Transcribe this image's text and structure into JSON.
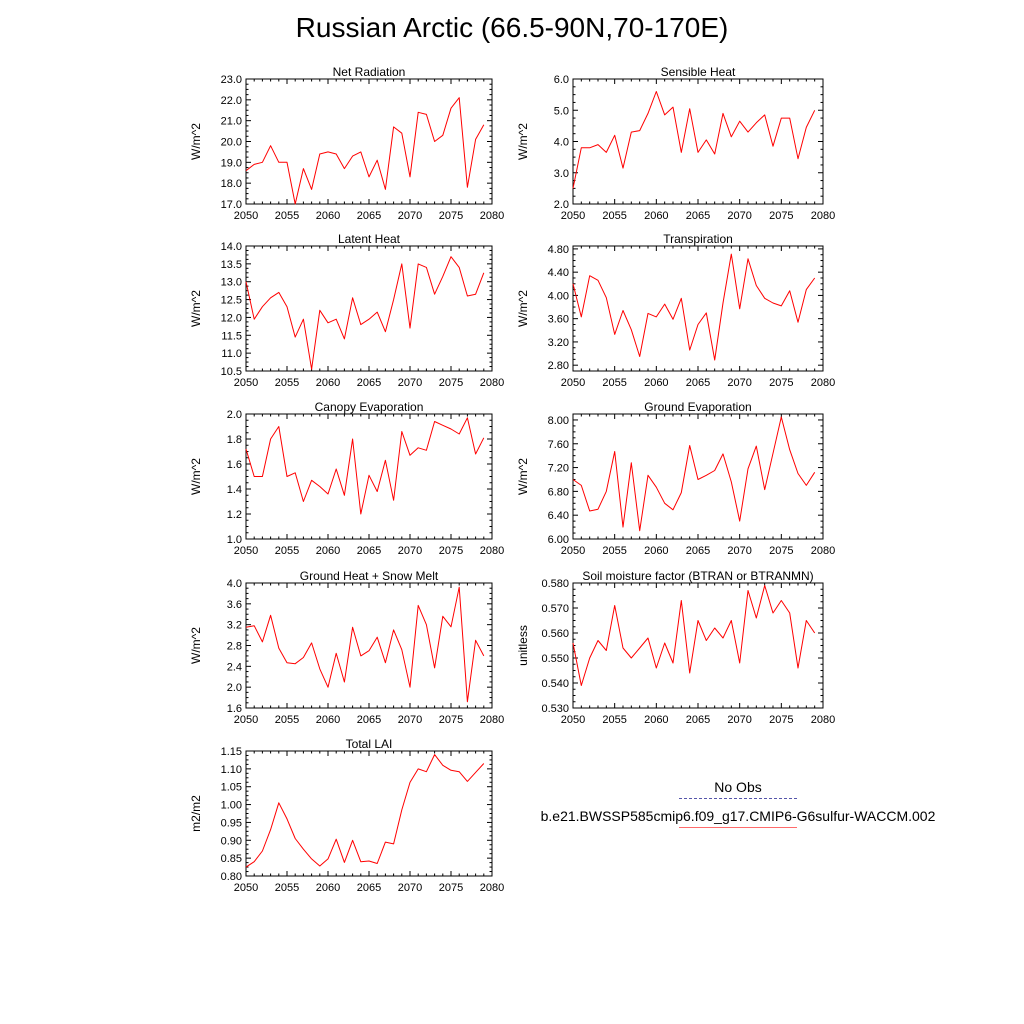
{
  "title": "Russian Arctic (66.5-90N,70-170E)",
  "legend": {
    "obs_label": "No Obs",
    "obs_color": "#4d4d99",
    "model_label": "b.e21.BWSSP585cmip6.f09_g17.CMIP6-G6sulfur-WACCM.002",
    "model_color": "#ff0000"
  },
  "chart_data": [
    {
      "type": "line",
      "title": "Net Radiation",
      "ylabel": "W/m^2",
      "xlim": [
        2050,
        2080
      ],
      "ylim": [
        17.0,
        23.0
      ],
      "xticks": [
        "2050",
        "2055",
        "2060",
        "2065",
        "2070",
        "2075",
        "2080"
      ],
      "yticks": [
        "17.0",
        "18.0",
        "19.0",
        "20.0",
        "21.0",
        "22.0",
        "23.0"
      ],
      "x": [
        2050,
        2051,
        2052,
        2053,
        2054,
        2055,
        2056,
        2057,
        2058,
        2059,
        2060,
        2061,
        2062,
        2063,
        2064,
        2065,
        2066,
        2067,
        2068,
        2069,
        2070,
        2071,
        2072,
        2073,
        2074,
        2075,
        2076,
        2077,
        2078,
        2079
      ],
      "series": [
        {
          "color": "#ff0000",
          "values": [
            18.6,
            18.9,
            19.0,
            19.8,
            19.0,
            19.0,
            17.0,
            18.7,
            17.7,
            19.4,
            19.5,
            19.4,
            18.7,
            19.3,
            19.5,
            18.3,
            19.1,
            17.7,
            20.7,
            20.4,
            18.3,
            21.4,
            21.3,
            20.0,
            20.3,
            21.6,
            22.1,
            17.8,
            20.1,
            20.8
          ]
        }
      ]
    },
    {
      "type": "line",
      "title": "Sensible Heat",
      "ylabel": "W/m^2",
      "xlim": [
        2050,
        2080
      ],
      "ylim": [
        2.0,
        6.0
      ],
      "xticks": [
        "2050",
        "2055",
        "2060",
        "2065",
        "2070",
        "2075",
        "2080"
      ],
      "yticks": [
        "2.0",
        "3.0",
        "4.0",
        "5.0",
        "6.0"
      ],
      "x": [
        2050,
        2051,
        2052,
        2053,
        2054,
        2055,
        2056,
        2057,
        2058,
        2059,
        2060,
        2061,
        2062,
        2063,
        2064,
        2065,
        2066,
        2067,
        2068,
        2069,
        2070,
        2071,
        2072,
        2073,
        2074,
        2075,
        2076,
        2077,
        2078,
        2079
      ],
      "series": [
        {
          "color": "#ff0000",
          "values": [
            2.5,
            3.8,
            3.8,
            3.9,
            3.65,
            4.2,
            3.15,
            4.3,
            4.35,
            4.9,
            5.6,
            4.85,
            5.1,
            3.65,
            5.05,
            3.65,
            4.05,
            3.6,
            4.9,
            4.15,
            4.65,
            4.3,
            4.6,
            4.85,
            3.85,
            4.75,
            4.75,
            3.45,
            4.45,
            5.0
          ]
        }
      ]
    },
    {
      "type": "line",
      "title": "Latent Heat",
      "ylabel": "W/m^2",
      "xlim": [
        2050,
        2080
      ],
      "ylim": [
        10.5,
        14.0
      ],
      "xticks": [
        "2050",
        "2055",
        "2060",
        "2065",
        "2070",
        "2075",
        "2080"
      ],
      "yticks": [
        "10.5",
        "11.0",
        "11.5",
        "12.0",
        "12.5",
        "13.0",
        "13.5",
        "14.0"
      ],
      "x": [
        2050,
        2051,
        2052,
        2053,
        2054,
        2055,
        2056,
        2057,
        2058,
        2059,
        2060,
        2061,
        2062,
        2063,
        2064,
        2065,
        2066,
        2067,
        2068,
        2069,
        2070,
        2071,
        2072,
        2073,
        2074,
        2075,
        2076,
        2077,
        2078,
        2079
      ],
      "series": [
        {
          "color": "#ff0000",
          "values": [
            13.0,
            11.95,
            12.3,
            12.55,
            12.7,
            12.3,
            11.45,
            11.95,
            10.55,
            12.2,
            11.85,
            11.95,
            11.4,
            12.55,
            11.8,
            11.95,
            12.15,
            11.6,
            12.5,
            13.5,
            11.7,
            13.5,
            13.4,
            12.65,
            13.15,
            13.7,
            13.4,
            12.6,
            12.65,
            13.25
          ]
        }
      ]
    },
    {
      "type": "line",
      "title": "Transpiration",
      "ylabel": "W/m^2",
      "xlim": [
        2050,
        2080
      ],
      "ylim": [
        2.7,
        4.85
      ],
      "xticks": [
        "2050",
        "2055",
        "2060",
        "2065",
        "2070",
        "2075",
        "2080"
      ],
      "yticks": [
        "2.80",
        "3.20",
        "3.60",
        "4.00",
        "4.40",
        "4.80"
      ],
      "x": [
        2050,
        2051,
        2052,
        2053,
        2054,
        2055,
        2056,
        2057,
        2058,
        2059,
        2060,
        2061,
        2062,
        2063,
        2064,
        2065,
        2066,
        2067,
        2068,
        2069,
        2070,
        2071,
        2072,
        2073,
        2074,
        2075,
        2076,
        2077,
        2078,
        2079
      ],
      "series": [
        {
          "color": "#ff0000",
          "values": [
            4.2,
            3.63,
            4.34,
            4.26,
            3.96,
            3.33,
            3.74,
            3.41,
            2.95,
            3.69,
            3.63,
            3.85,
            3.59,
            3.95,
            3.06,
            3.5,
            3.7,
            2.89,
            3.87,
            4.71,
            3.77,
            4.63,
            4.17,
            3.95,
            3.87,
            3.82,
            4.08,
            3.54,
            4.1,
            4.3
          ]
        }
      ]
    },
    {
      "type": "line",
      "title": "Canopy Evaporation",
      "ylabel": "W/m^2",
      "xlim": [
        2050,
        2080
      ],
      "ylim": [
        1.0,
        2.0
      ],
      "xticks": [
        "2050",
        "2055",
        "2060",
        "2065",
        "2070",
        "2075",
        "2080"
      ],
      "yticks": [
        "1.0",
        "1.2",
        "1.4",
        "1.6",
        "1.8",
        "2.0"
      ],
      "x": [
        2050,
        2051,
        2052,
        2053,
        2054,
        2055,
        2056,
        2057,
        2058,
        2059,
        2060,
        2061,
        2062,
        2063,
        2064,
        2065,
        2066,
        2067,
        2068,
        2069,
        2070,
        2071,
        2072,
        2073,
        2074,
        2075,
        2076,
        2077,
        2078,
        2079
      ],
      "series": [
        {
          "color": "#ff0000",
          "values": [
            1.72,
            1.5,
            1.5,
            1.8,
            1.9,
            1.5,
            1.53,
            1.3,
            1.47,
            1.42,
            1.36,
            1.56,
            1.35,
            1.8,
            1.2,
            1.51,
            1.38,
            1.63,
            1.31,
            1.86,
            1.67,
            1.73,
            1.71,
            1.94,
            1.91,
            1.88,
            1.84,
            1.97,
            1.68,
            1.81
          ]
        }
      ]
    },
    {
      "type": "line",
      "title": "Ground Evaporation",
      "ylabel": "W/m^2",
      "xlim": [
        2050,
        2080
      ],
      "ylim": [
        6.0,
        8.1
      ],
      "xticks": [
        "2050",
        "2055",
        "2060",
        "2065",
        "2070",
        "2075",
        "2080"
      ],
      "yticks": [
        "6.00",
        "6.40",
        "6.80",
        "7.20",
        "7.60",
        "8.00"
      ],
      "x": [
        2050,
        2051,
        2052,
        2053,
        2054,
        2055,
        2056,
        2057,
        2058,
        2059,
        2060,
        2061,
        2062,
        2063,
        2064,
        2065,
        2066,
        2067,
        2068,
        2069,
        2070,
        2071,
        2072,
        2073,
        2074,
        2075,
        2076,
        2077,
        2078,
        2079
      ],
      "series": [
        {
          "color": "#ff0000",
          "values": [
            7.0,
            6.9,
            6.47,
            6.5,
            6.8,
            7.47,
            6.2,
            7.28,
            6.14,
            7.07,
            6.87,
            6.6,
            6.49,
            6.78,
            7.57,
            7.0,
            7.07,
            7.15,
            7.43,
            6.96,
            6.3,
            7.18,
            7.56,
            6.83,
            7.44,
            8.05,
            7.5,
            7.1,
            6.9,
            7.12
          ]
        }
      ]
    },
    {
      "type": "line",
      "title": "Ground Heat + Snow Melt",
      "ylabel": "W/m^2",
      "xlim": [
        2050,
        2080
      ],
      "ylim": [
        1.6,
        4.0
      ],
      "xticks": [
        "2050",
        "2055",
        "2060",
        "2065",
        "2070",
        "2075",
        "2080"
      ],
      "yticks": [
        "1.6",
        "2.0",
        "2.4",
        "2.8",
        "3.2",
        "3.6",
        "4.0"
      ],
      "x": [
        2050,
        2051,
        2052,
        2053,
        2054,
        2055,
        2056,
        2057,
        2058,
        2059,
        2060,
        2061,
        2062,
        2063,
        2064,
        2065,
        2066,
        2067,
        2068,
        2069,
        2070,
        2071,
        2072,
        2073,
        2074,
        2075,
        2076,
        2077,
        2078,
        2079
      ],
      "series": [
        {
          "color": "#ff0000",
          "values": [
            3.15,
            3.18,
            2.87,
            3.38,
            2.75,
            2.47,
            2.45,
            2.57,
            2.85,
            2.35,
            2.0,
            2.65,
            2.1,
            3.15,
            2.6,
            2.7,
            2.96,
            2.47,
            3.1,
            2.72,
            2.0,
            3.57,
            3.2,
            2.37,
            3.36,
            3.16,
            3.92,
            1.72,
            2.9,
            2.6
          ]
        }
      ]
    },
    {
      "type": "line",
      "title": "Soil moisture factor (BTRAN or BTRANMN)",
      "ylabel": "unitless",
      "xlim": [
        2050,
        2080
      ],
      "ylim": [
        0.53,
        0.58
      ],
      "xticks": [
        "2050",
        "2055",
        "2060",
        "2065",
        "2070",
        "2075",
        "2080"
      ],
      "yticks": [
        "0.530",
        "0.540",
        "0.550",
        "0.560",
        "0.570",
        "0.580"
      ],
      "x": [
        2050,
        2051,
        2052,
        2053,
        2054,
        2055,
        2056,
        2057,
        2058,
        2059,
        2060,
        2061,
        2062,
        2063,
        2064,
        2065,
        2066,
        2067,
        2068,
        2069,
        2070,
        2071,
        2072,
        2073,
        2074,
        2075,
        2076,
        2077,
        2078,
        2079
      ],
      "series": [
        {
          "color": "#ff0000",
          "values": [
            0.556,
            0.539,
            0.55,
            0.557,
            0.553,
            0.571,
            0.554,
            0.55,
            0.554,
            0.558,
            0.546,
            0.556,
            0.548,
            0.573,
            0.544,
            0.565,
            0.557,
            0.562,
            0.558,
            0.565,
            0.548,
            0.577,
            0.566,
            0.579,
            0.568,
            0.573,
            0.568,
            0.546,
            0.565,
            0.56
          ]
        }
      ]
    },
    {
      "type": "line",
      "title": "Total LAI",
      "ylabel": "m2/m2",
      "xlim": [
        2050,
        2080
      ],
      "ylim": [
        0.8,
        1.15
      ],
      "xticks": [
        "2050",
        "2055",
        "2060",
        "2065",
        "2070",
        "2075",
        "2080"
      ],
      "yticks": [
        "0.80",
        "0.85",
        "0.90",
        "0.95",
        "1.00",
        "1.05",
        "1.10",
        "1.15"
      ],
      "x": [
        2050,
        2051,
        2052,
        2053,
        2054,
        2055,
        2056,
        2057,
        2058,
        2059,
        2060,
        2061,
        2062,
        2063,
        2064,
        2065,
        2066,
        2067,
        2068,
        2069,
        2070,
        2071,
        2072,
        2073,
        2074,
        2075,
        2076,
        2077,
        2078,
        2079
      ],
      "series": [
        {
          "color": "#ff0000",
          "values": [
            0.825,
            0.84,
            0.87,
            0.93,
            1.005,
            0.96,
            0.905,
            0.875,
            0.848,
            0.828,
            0.848,
            0.903,
            0.838,
            0.9,
            0.84,
            0.842,
            0.835,
            0.895,
            0.89,
            0.985,
            1.062,
            1.1,
            1.092,
            1.14,
            1.11,
            1.096,
            1.092,
            1.065,
            1.09,
            1.115
          ]
        }
      ]
    }
  ]
}
